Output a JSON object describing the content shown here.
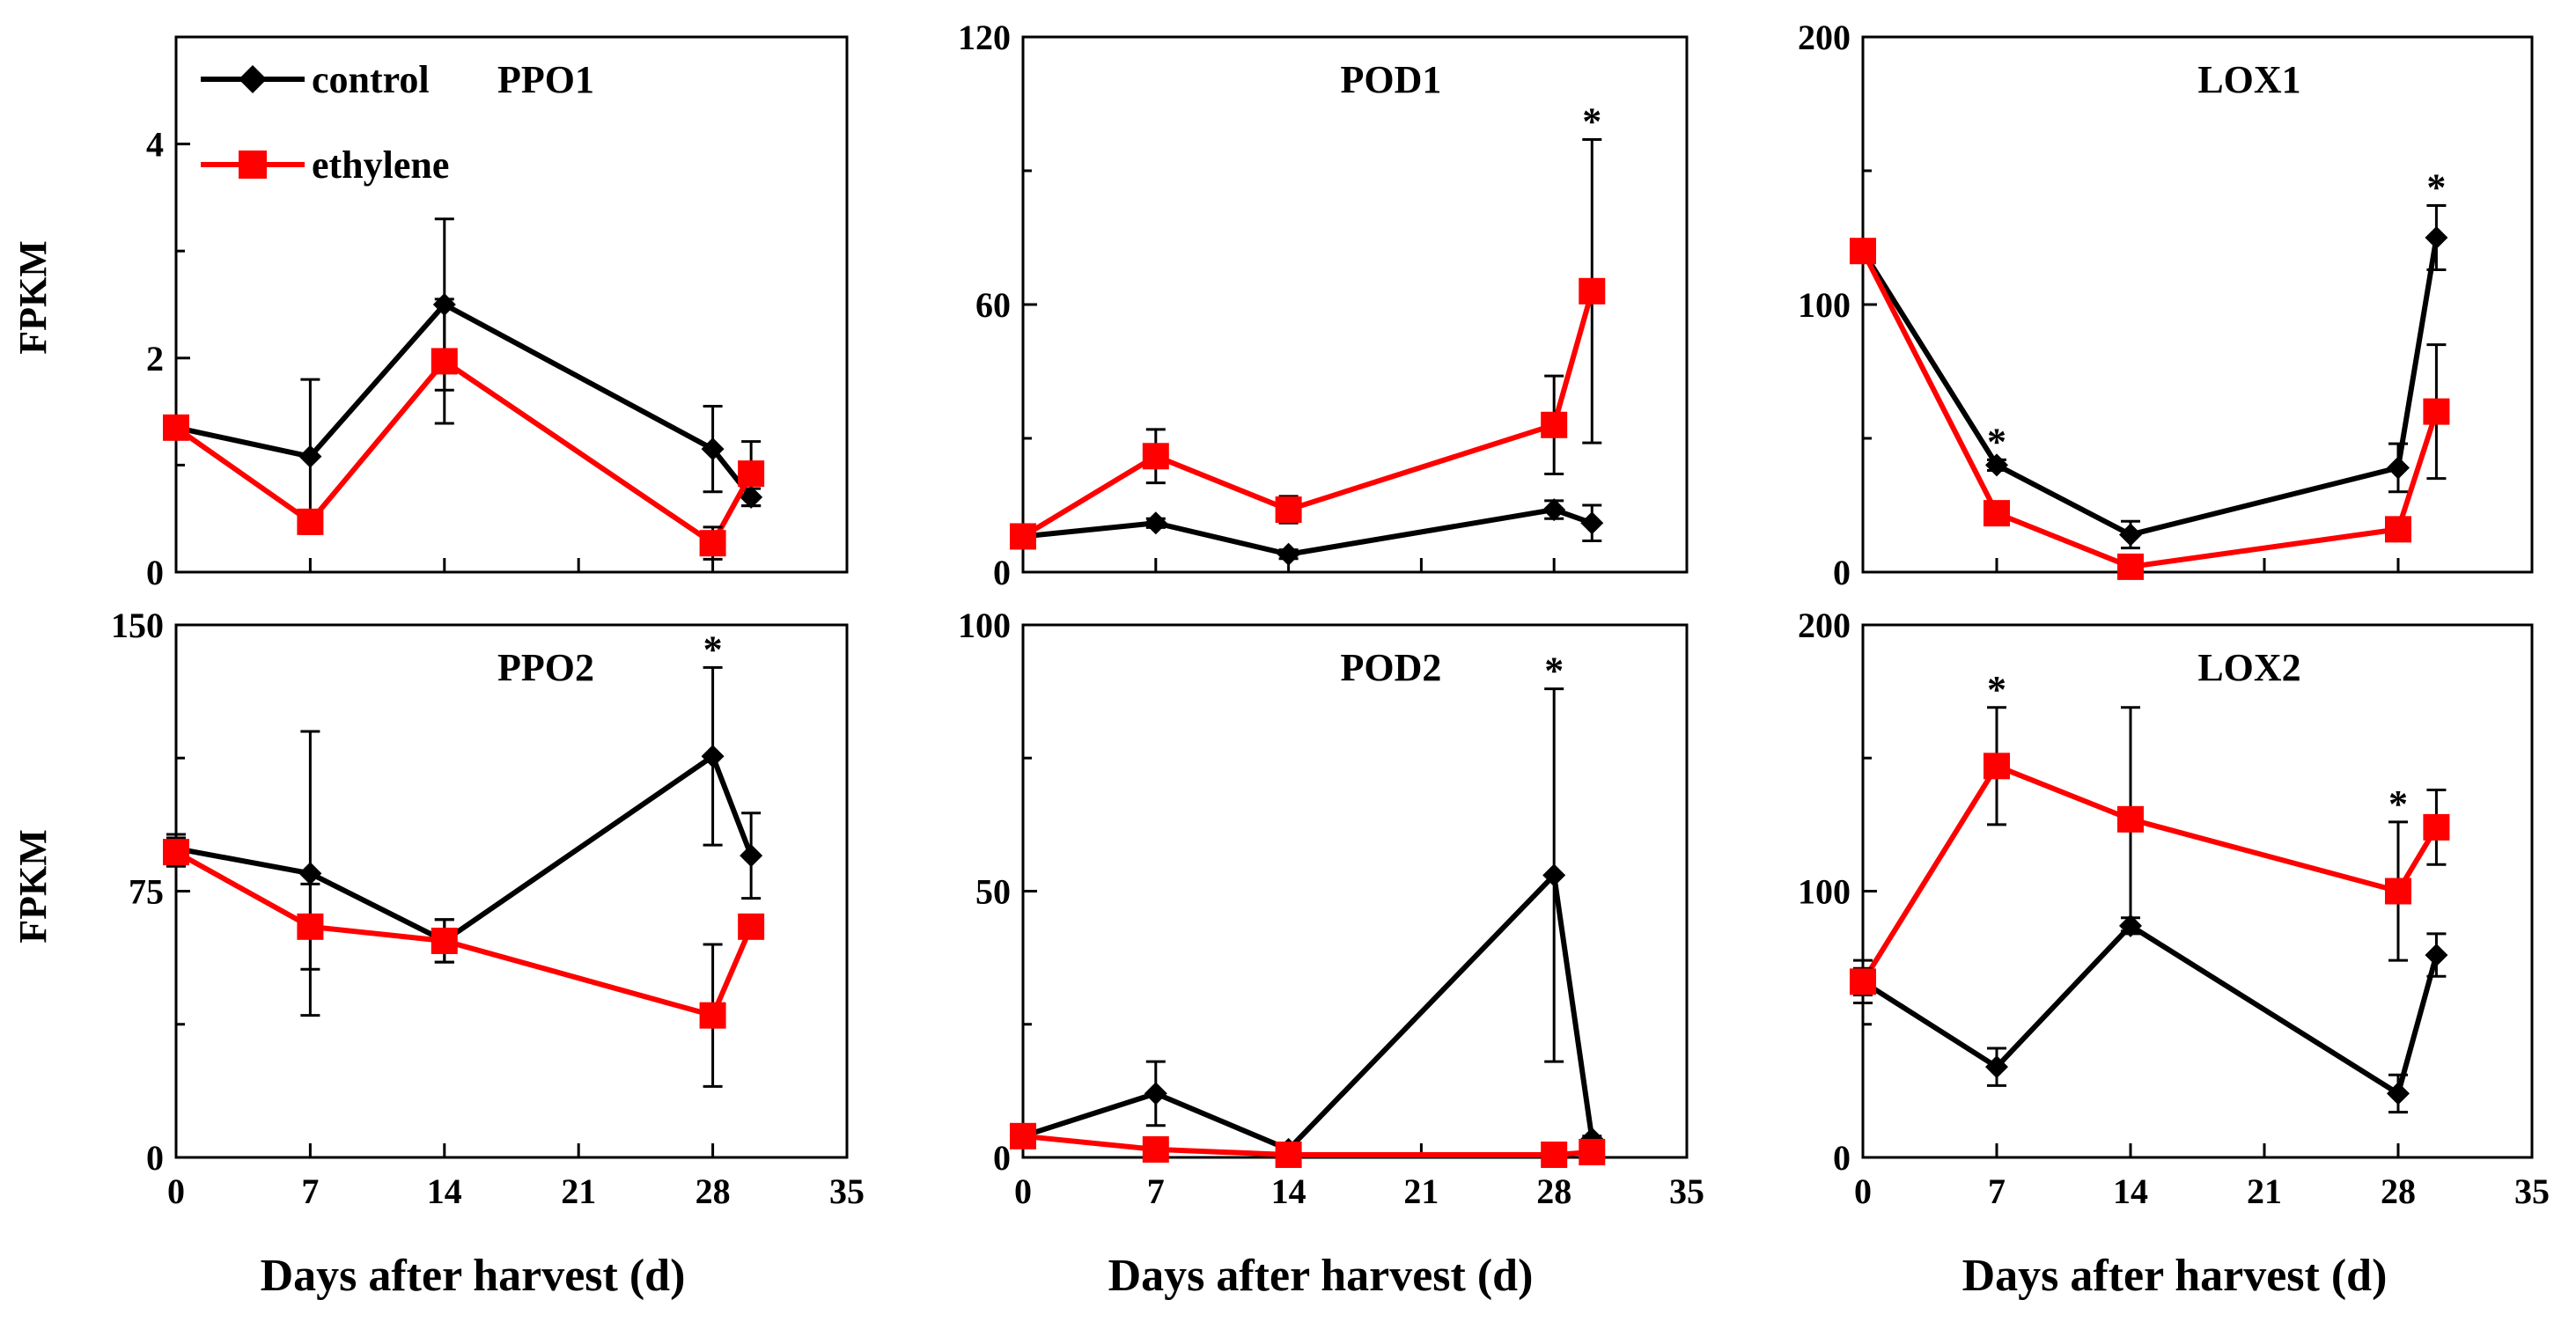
{
  "figure": {
    "xlabel": "Days after harvest (d)",
    "ylabel": "FPKM",
    "legend": [
      {
        "label": "control",
        "color": "#000000",
        "marker": "diamond"
      },
      {
        "label": "ethylene",
        "color": "#ff0000",
        "marker": "square"
      }
    ]
  },
  "chart_data": [
    {
      "type": "line",
      "title": "PPO1",
      "ylabel": "FPKM",
      "xlabel": "",
      "xlim": [
        0,
        35
      ],
      "xticks": [
        0,
        7,
        14,
        21,
        28,
        35
      ],
      "ylim": [
        0,
        5
      ],
      "yticks": [
        0,
        2,
        4
      ],
      "x": [
        0,
        7,
        14,
        28,
        30
      ],
      "series": [
        {
          "name": "control",
          "color": "#000000",
          "marker": "diamond",
          "values": [
            1.35,
            1.08,
            2.5,
            1.15,
            0.7
          ],
          "errors": [
            0.05,
            0.72,
            0.8,
            0.4,
            0.08
          ]
        },
        {
          "name": "ethylene",
          "color": "#ff0000",
          "marker": "square",
          "values": [
            1.35,
            0.47,
            1.97,
            0.27,
            0.92
          ],
          "errors": [
            0.05,
            0.1,
            0.58,
            0.15,
            0.3
          ]
        }
      ],
      "annotations": []
    },
    {
      "type": "line",
      "title": "POD1",
      "ylabel": "",
      "xlabel": "",
      "xlim": [
        0,
        35
      ],
      "xticks": [
        0,
        7,
        14,
        21,
        28,
        35
      ],
      "ylim": [
        0,
        120
      ],
      "yticks": [
        0,
        60,
        120
      ],
      "x": [
        0,
        7,
        14,
        28,
        30
      ],
      "series": [
        {
          "name": "control",
          "color": "#000000",
          "marker": "diamond",
          "values": [
            8,
            11,
            4,
            14,
            11
          ],
          "errors": [
            1,
            1,
            1,
            2,
            4
          ]
        },
        {
          "name": "ethylene",
          "color": "#ff0000",
          "marker": "square",
          "values": [
            8,
            26,
            14,
            33,
            63
          ],
          "errors": [
            1,
            6,
            3,
            11,
            34
          ]
        }
      ],
      "annotations": [
        {
          "text": "*",
          "x": 30
        }
      ]
    },
    {
      "type": "line",
      "title": "LOX1",
      "ylabel": "",
      "xlabel": "",
      "xlim": [
        0,
        35
      ],
      "xticks": [
        0,
        7,
        14,
        21,
        28,
        35
      ],
      "ylim": [
        0,
        200
      ],
      "yticks": [
        0,
        100,
        200
      ],
      "x": [
        0,
        7,
        14,
        28,
        30
      ],
      "series": [
        {
          "name": "control",
          "color": "#000000",
          "marker": "diamond",
          "values": [
            120,
            40,
            14,
            39,
            125
          ],
          "errors": [
            2,
            2,
            5,
            9,
            12
          ]
        },
        {
          "name": "ethylene",
          "color": "#ff0000",
          "marker": "square",
          "values": [
            120,
            22,
            2,
            16,
            60
          ],
          "errors": [
            2,
            2,
            1,
            2,
            25
          ]
        }
      ],
      "annotations": [
        {
          "text": "*",
          "x": 7
        },
        {
          "text": "*",
          "x": 30
        }
      ]
    },
    {
      "type": "line",
      "title": "PPO2",
      "ylabel": "FPKM",
      "xlabel": "Days after harvest (d)",
      "xlim": [
        0,
        35
      ],
      "xticks": [
        0,
        7,
        14,
        21,
        28,
        35
      ],
      "ylim": [
        0,
        150
      ],
      "yticks": [
        0,
        75,
        150
      ],
      "x": [
        0,
        7,
        14,
        28,
        30
      ],
      "series": [
        {
          "name": "control",
          "color": "#000000",
          "marker": "diamond",
          "values": [
            87,
            80,
            61,
            113,
            85
          ],
          "errors": [
            4,
            40,
            6,
            25,
            12
          ]
        },
        {
          "name": "ethylene",
          "color": "#ff0000",
          "marker": "square",
          "values": [
            86,
            65,
            61,
            40,
            65
          ],
          "errors": [
            4,
            12,
            6,
            20,
            3
          ]
        }
      ],
      "annotations": [
        {
          "text": "*",
          "x": 28
        }
      ]
    },
    {
      "type": "line",
      "title": "POD2",
      "ylabel": "",
      "xlabel": "Days after harvest (d)",
      "xlim": [
        0,
        35
      ],
      "xticks": [
        0,
        7,
        14,
        21,
        28,
        35
      ],
      "ylim": [
        0,
        100
      ],
      "yticks": [
        0,
        50,
        100
      ],
      "x": [
        0,
        7,
        14,
        28,
        30
      ],
      "series": [
        {
          "name": "control",
          "color": "#000000",
          "marker": "diamond",
          "values": [
            4,
            12,
            1.5,
            53,
            3.5
          ],
          "errors": [
            1,
            6,
            0.5,
            35,
            0.5
          ]
        },
        {
          "name": "ethylene",
          "color": "#ff0000",
          "marker": "square",
          "values": [
            4,
            1.5,
            0.5,
            0.5,
            1
          ],
          "errors": [
            0.5,
            0.5,
            0.2,
            0.3,
            0.3
          ]
        }
      ],
      "annotations": [
        {
          "text": "*",
          "x": 28
        }
      ]
    },
    {
      "type": "line",
      "title": "LOX2",
      "ylabel": "",
      "xlabel": "Days after harvest (d)",
      "xlim": [
        0,
        35
      ],
      "xticks": [
        0,
        7,
        14,
        21,
        28,
        35
      ],
      "ylim": [
        0,
        200
      ],
      "yticks": [
        0,
        100,
        200
      ],
      "x": [
        0,
        7,
        14,
        28,
        30
      ],
      "series": [
        {
          "name": "control",
          "color": "#000000",
          "marker": "diamond",
          "values": [
            66,
            34,
            87,
            24,
            76
          ],
          "errors": [
            8,
            7,
            3,
            7,
            8
          ]
        },
        {
          "name": "ethylene",
          "color": "#ff0000",
          "marker": "square",
          "values": [
            66,
            147,
            127,
            100,
            124
          ],
          "errors": [
            5,
            22,
            42,
            26,
            14
          ]
        }
      ],
      "annotations": [
        {
          "text": "*",
          "x": 7
        },
        {
          "text": "*",
          "x": 28
        }
      ]
    }
  ]
}
